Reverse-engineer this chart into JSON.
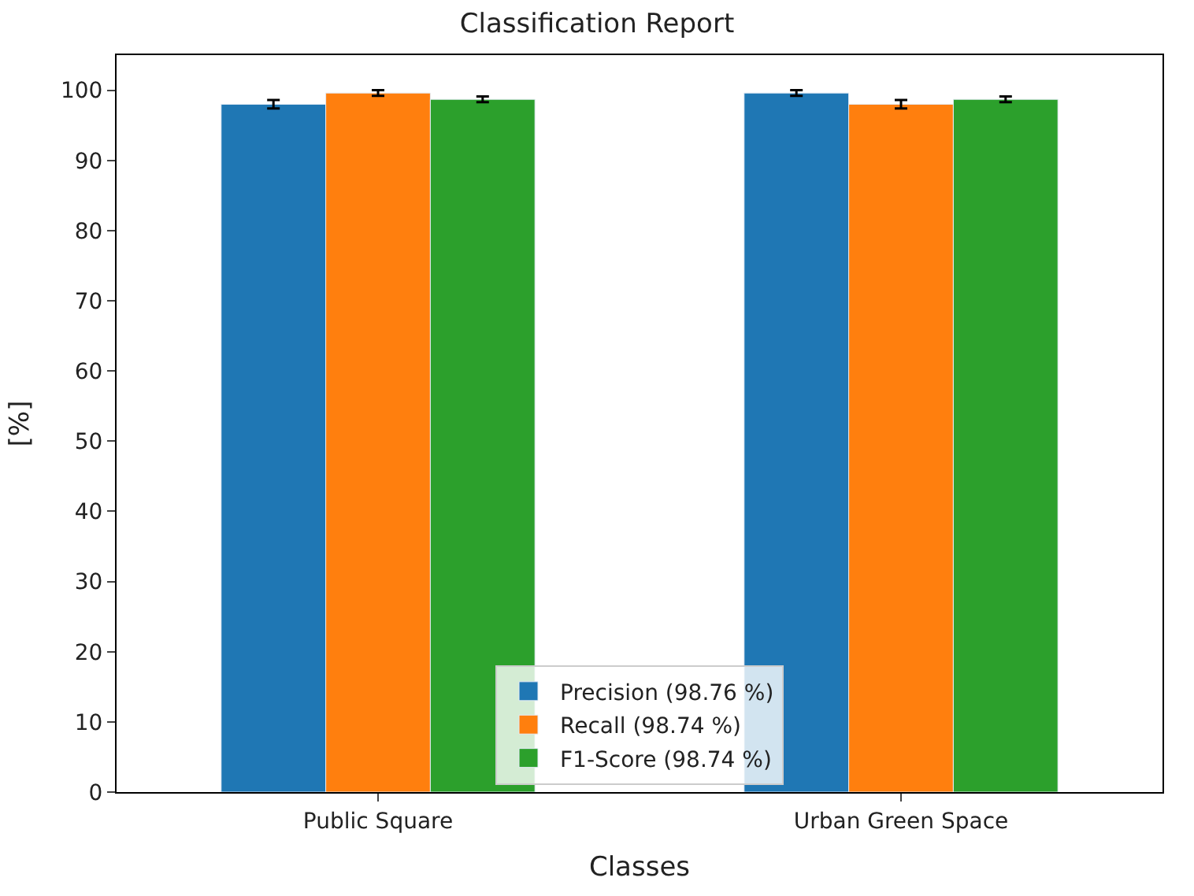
{
  "chart_data": {
    "type": "bar",
    "title": "Classification Report",
    "xlabel": "Classes",
    "ylabel": "[%]",
    "categories": [
      "Public Square",
      "Urban Green Space"
    ],
    "series": [
      {
        "name": "Precision (98.76 %)",
        "color": "#1f77b4",
        "values": [
          98.0,
          99.6
        ],
        "errors": [
          0.6,
          0.4
        ]
      },
      {
        "name": "Recall (98.74 %)",
        "color": "#ff7f0e",
        "values": [
          99.6,
          98.0
        ],
        "errors": [
          0.4,
          0.6
        ]
      },
      {
        "name": "F1-Score (98.74 %)",
        "color": "#2ca02c",
        "values": [
          98.7,
          98.7
        ],
        "errors": [
          0.4,
          0.4
        ]
      }
    ],
    "ylim": [
      0,
      105
    ],
    "yticks": [
      0,
      10,
      20,
      30,
      40,
      50,
      60,
      70,
      80,
      90,
      100
    ],
    "grid": false,
    "legend": "bottom"
  }
}
